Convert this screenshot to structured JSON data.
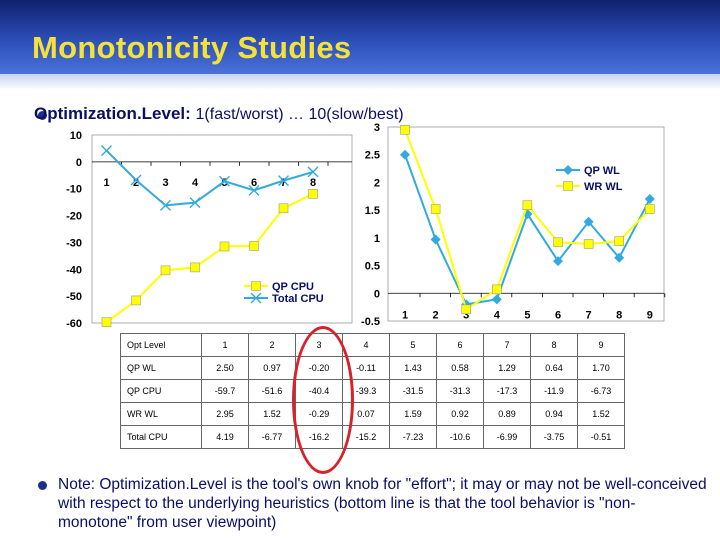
{
  "slide": {
    "title": "Monotonicity Studies",
    "bullet1_label": "Optimization.Level: ",
    "bullet1_value": "1(fast/worst) … 10(slow/best)",
    "note": "Note: Optimization.Level is the tool's own knob for \"effort\"; it may or may not be well-conceived with respect to the underlying heuristics (bottom line is that the tool behavior is \"non-monotone\" from user viewpoint)"
  },
  "colors": {
    "title": "#f4e23a",
    "header_bg": "#2c4fb8",
    "cpu_yellow": "#ffff00",
    "wl_blue": "#33aadd",
    "highlight": "#d8222b"
  },
  "chart_data": [
    {
      "type": "line",
      "title": "",
      "x": [
        1,
        2,
        3,
        4,
        5,
        6,
        7,
        8
      ],
      "ylim": [
        -60,
        10
      ],
      "yticks": [
        10,
        0,
        -10,
        -20,
        -30,
        -40,
        -50,
        -60
      ],
      "xticks": [
        "1",
        "2",
        "3",
        "4",
        "5",
        "6",
        "7",
        "8"
      ],
      "legend": "bottom-right",
      "series": [
        {
          "name": "QP CPU",
          "color": "#ffff00",
          "marker": "square",
          "values": [
            -59.7,
            -51.6,
            -40.4,
            -39.3,
            -31.5,
            -31.3,
            -17.3,
            -11.9
          ]
        },
        {
          "name": "Total CPU",
          "color": "#33aadd",
          "marker": "x",
          "values": [
            4.19,
            -6.77,
            -16.2,
            -15.2,
            -7.23,
            -10.6,
            -6.99,
            -3.75
          ]
        }
      ]
    },
    {
      "type": "line",
      "title": "",
      "x": [
        1,
        2,
        3,
        4,
        5,
        6,
        7,
        8,
        9
      ],
      "ylim": [
        -0.5,
        3
      ],
      "yticks": [
        "3",
        "2.5",
        "2",
        "1.5",
        "1",
        "0.5",
        "0",
        "-0.5"
      ],
      "xticks": [
        "1",
        "2",
        "3",
        "4",
        "5",
        "6",
        "7",
        "8",
        "9"
      ],
      "legend": "top-right",
      "series": [
        {
          "name": "QP WL",
          "color": "#33aadd",
          "marker": "diamond",
          "values": [
            2.5,
            0.97,
            -0.2,
            -0.11,
            1.43,
            0.58,
            1.29,
            0.64,
            1.7
          ]
        },
        {
          "name": "WR WL",
          "color": "#ffff00",
          "marker": "square",
          "values": [
            2.95,
            1.52,
            -0.29,
            0.07,
            1.59,
            0.92,
            0.89,
            0.94,
            1.52
          ]
        }
      ]
    },
    {
      "type": "table",
      "columns": [
        "Opt Level",
        "1",
        "2",
        "3",
        "4",
        "5",
        "6",
        "7",
        "8",
        "9"
      ],
      "rows": [
        [
          "QP WL",
          "2.50",
          "0.97",
          "-0.20",
          "-0.11",
          "1.43",
          "0.58",
          "1.29",
          "0.64",
          "1.70"
        ],
        [
          "QP CPU",
          "-59.7",
          "-51.6",
          "-40.4",
          "-39.3",
          "-31.5",
          "-31.3",
          "-17.3",
          "-11.9",
          "-6.73"
        ],
        [
          "WR WL",
          "2.95",
          "1.52",
          "-0.29",
          "0.07",
          "1.59",
          "0.92",
          "0.89",
          "0.94",
          "1.52"
        ],
        [
          "Total CPU",
          "4.19",
          "-6.77",
          "-16.2",
          "-15.2",
          "-7.23",
          "-10.6",
          "-6.99",
          "-3.75",
          "-0.51"
        ]
      ]
    }
  ]
}
